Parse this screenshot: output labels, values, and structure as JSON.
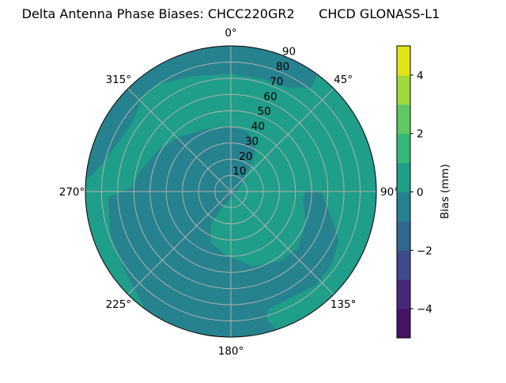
{
  "chart_data": {
    "type": "polar-contour",
    "title": "Delta Antenna Phase Biases: CHCC220GR2      CHCD GLONASS-L1",
    "theta_direction": "clockwise",
    "theta_zero": "north",
    "theta_ticks": [
      "0°",
      "45°",
      "90°",
      "135°",
      "180°",
      "225°",
      "270°",
      "315°"
    ],
    "r_ticks": [
      "10",
      "20",
      "30",
      "40",
      "50",
      "60",
      "70",
      "80",
      "90"
    ],
    "rlim": [
      0,
      90
    ],
    "grid": true,
    "colorbar": {
      "label": "Bias (mm)",
      "levels": [
        -5,
        -4,
        -3,
        -2,
        -1,
        0,
        1,
        2,
        3,
        4,
        5
      ],
      "ticks": [
        "−4",
        "−2",
        "0",
        "2",
        "4"
      ],
      "tick_values": [
        -4,
        -2,
        0,
        2,
        4
      ],
      "colormap": "viridis",
      "band_colors": [
        "#471365",
        "#482979",
        "#3e4a89",
        "#31688e",
        "#26828e",
        "#1f9e89",
        "#35b779",
        "#5ec962",
        "#a0da39",
        "#e3e418"
      ]
    },
    "regions": [
      {
        "level_range": [
          -1,
          0
        ],
        "color": "#26828e",
        "description_areas": [
          "outer ring upper-left",
          "center toward south",
          "south-east lobe"
        ]
      },
      {
        "level_range": [
          0,
          1
        ],
        "color": "#1f9e89",
        "description_areas": [
          "north-east and east",
          "mid ring north-west",
          "south-west edge"
        ]
      }
    ]
  }
}
